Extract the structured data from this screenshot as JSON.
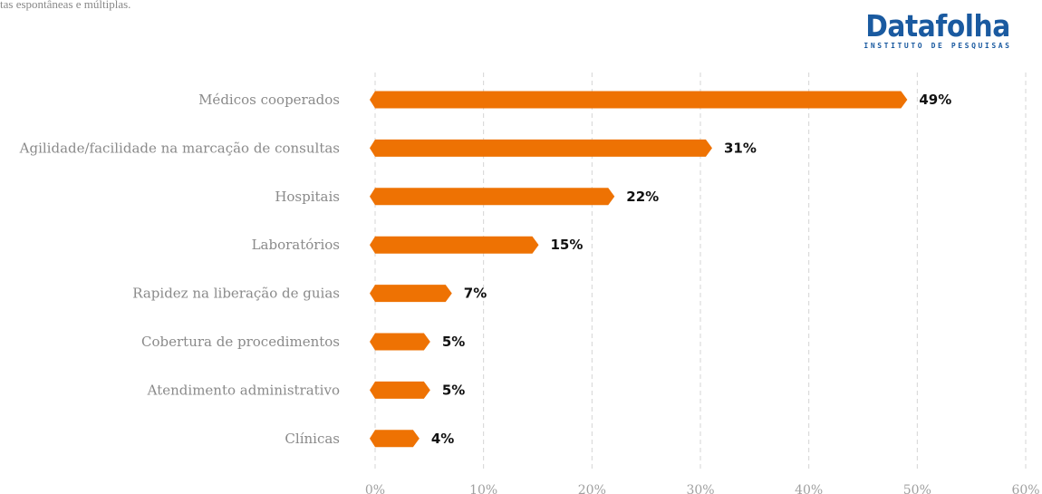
{
  "note": "tas espontâneas e múltiplas.",
  "logo": {
    "name": "Datafolha",
    "subtitle": "INSTITUTO DE PESQUISAS",
    "color": "#1a5aa0"
  },
  "colors": {
    "bar": "#ee7203",
    "grid": "#d4d4d4"
  },
  "chart_data": {
    "type": "bar",
    "orientation": "horizontal",
    "categories": [
      "Médicos cooperados",
      "Agilidade/facilidade na marcação de consultas",
      "Hospitais",
      "Laboratórios",
      "Rapidez na liberação de guias",
      "Cobertura de procedimentos",
      "Atendimento administrativo",
      "Clínicas"
    ],
    "values": [
      49,
      31,
      22,
      15,
      7,
      5,
      5,
      4
    ],
    "value_labels": [
      "49%",
      "31%",
      "22%",
      "15%",
      "7%",
      "5%",
      "5%",
      "4%"
    ],
    "xlim": [
      0,
      60
    ],
    "ticks": [
      0,
      10,
      20,
      30,
      40,
      50,
      60
    ],
    "tick_labels": [
      "0%",
      "10%",
      "20%",
      "30%",
      "40%",
      "50%",
      "60%"
    ],
    "grid": true,
    "grid_style": "dashed vertical",
    "title": "",
    "xlabel": "",
    "ylabel": ""
  }
}
